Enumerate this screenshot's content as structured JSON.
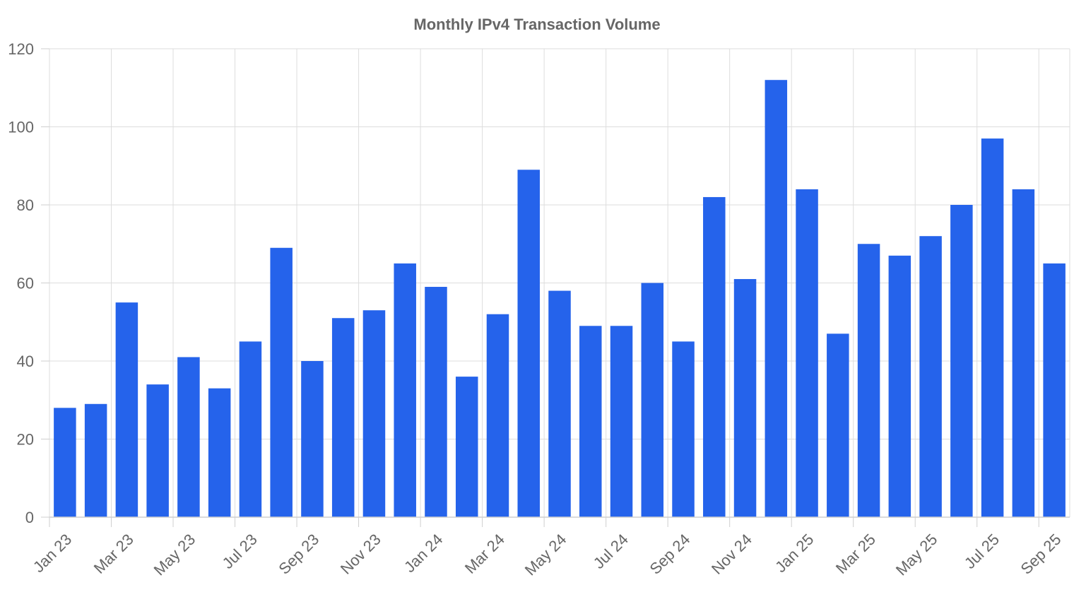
{
  "chart_data": {
    "type": "bar",
    "title": "Monthly IPv4 Transaction Volume",
    "xlabel": "",
    "ylabel": "",
    "ylim": [
      0,
      120
    ],
    "yticks": [
      0,
      20,
      40,
      60,
      80,
      100,
      120
    ],
    "grid": true,
    "bar_color": "#2563eb",
    "categories": [
      "Jan 23",
      "Feb 23",
      "Mar 23",
      "Apr 23",
      "May 23",
      "Jun 23",
      "Jul 23",
      "Aug 23",
      "Sep 23",
      "Oct 23",
      "Nov 23",
      "Dec 23",
      "Jan 24",
      "Feb 24",
      "Mar 24",
      "Apr 24",
      "May 24",
      "Jun 24",
      "Jul 24",
      "Aug 24",
      "Sep 24",
      "Oct 24",
      "Nov 24",
      "Dec 24",
      "Jan 25",
      "Feb 25",
      "Mar 25",
      "Apr 25",
      "May 25",
      "Jun 25",
      "Jul 25",
      "Aug 25",
      "Sep 25"
    ],
    "values": [
      28,
      29,
      55,
      34,
      41,
      33,
      45,
      69,
      40,
      51,
      53,
      65,
      59,
      36,
      52,
      89,
      58,
      49,
      49,
      60,
      45,
      82,
      61,
      112,
      84,
      47,
      70,
      67,
      72,
      80,
      97,
      84,
      65
    ],
    "xtick_labels": [
      "Jan 23",
      "Mar 23",
      "May 23",
      "Jul 23",
      "Sep 23",
      "Nov 23",
      "Jan 24",
      "Mar 24",
      "May 24",
      "Jul 24",
      "Sep 24",
      "Nov 24",
      "Jan 25",
      "Mar 25",
      "May 25",
      "Jul 25",
      "Sep 25"
    ]
  }
}
